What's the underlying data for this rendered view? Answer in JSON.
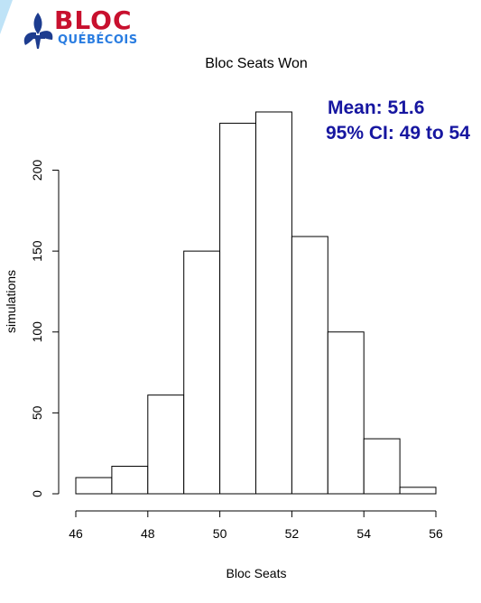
{
  "logo": {
    "word": "BLOC",
    "subword": "QUÉBÉCOIS",
    "word_color": "#c8102e",
    "subword_color": "#2a7de1",
    "emblem_color": "#1d3c8f",
    "emblem_name": "fleur-de-lis-icon"
  },
  "annotation": {
    "mean": "Mean: 51.6",
    "ci": "95% CI: 49 to 54",
    "color": "#1616a0"
  },
  "chart_data": {
    "type": "bar",
    "title": "Bloc Seats Won",
    "xlabel": "Bloc Seats",
    "ylabel": "simulations",
    "bins": [
      {
        "from": 46,
        "to": 47,
        "count": 10
      },
      {
        "from": 47,
        "to": 48,
        "count": 17
      },
      {
        "from": 48,
        "to": 49,
        "count": 61
      },
      {
        "from": 49,
        "to": 50,
        "count": 150
      },
      {
        "from": 50,
        "to": 51,
        "count": 229
      },
      {
        "from": 51,
        "to": 52,
        "count": 236
      },
      {
        "from": 52,
        "to": 53,
        "count": 159
      },
      {
        "from": 53,
        "to": 54,
        "count": 100
      },
      {
        "from": 54,
        "to": 55,
        "count": 34
      },
      {
        "from": 55,
        "to": 56,
        "count": 4
      }
    ],
    "xlim": [
      46,
      56
    ],
    "ylim": [
      0,
      236
    ],
    "x_ticks": [
      "46",
      "48",
      "50",
      "52",
      "54",
      "56"
    ],
    "y_ticks": [
      "0",
      "50",
      "100",
      "150",
      "200"
    ],
    "grid": false,
    "legend": "none"
  }
}
